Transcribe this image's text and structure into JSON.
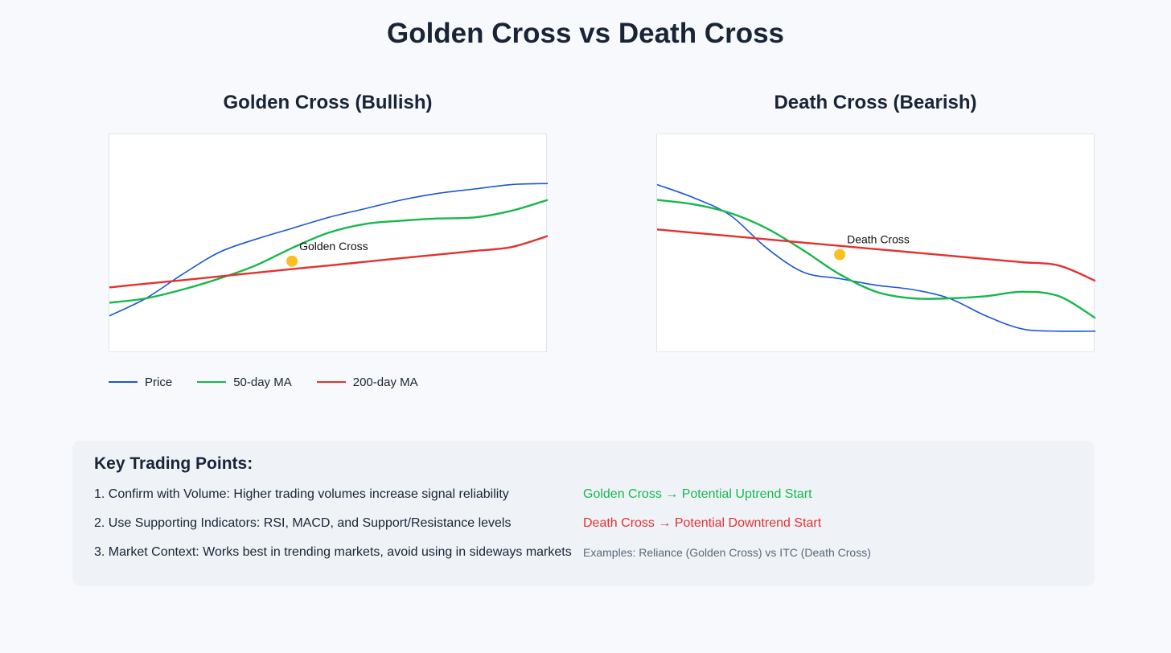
{
  "title": "Golden Cross vs Death Cross",
  "chart_data": [
    {
      "type": "line",
      "title": "Golden Cross (Bullish)",
      "x": [
        0,
        1,
        2,
        3,
        4,
        5,
        6,
        7,
        8,
        9,
        10,
        11,
        12
      ],
      "ylim": [
        0,
        100
      ],
      "series": [
        {
          "name": "Price",
          "color": "#1a56db",
          "values": [
            17,
            25,
            36,
            46,
            52,
            57,
            62,
            66,
            70,
            73,
            75,
            77,
            77.5
          ]
        },
        {
          "name": "50-day MA",
          "color": "#16b84a",
          "values": [
            23,
            25,
            29,
            34,
            40,
            48,
            55,
            59,
            60.5,
            61.5,
            62,
            65,
            70
          ]
        },
        {
          "name": "200-day MA",
          "color": "#e53030",
          "values": [
            30,
            31.7,
            33.3,
            35,
            36.7,
            38.4,
            40,
            41.7,
            43.4,
            45,
            46.7,
            48.4,
            53.5
          ]
        }
      ],
      "annotation": {
        "label": "Golden Cross",
        "x": 5,
        "y": 42,
        "color": "#fbbf24"
      }
    },
    {
      "type": "line",
      "title": "Death Cross (Bearish)",
      "x": [
        0,
        1,
        2,
        3,
        4,
        5,
        6,
        7,
        8,
        9,
        10,
        11,
        12
      ],
      "ylim": [
        0,
        100
      ],
      "series": [
        {
          "name": "Price",
          "color": "#1a56db",
          "values": [
            77,
            71,
            63,
            48,
            37,
            34,
            31,
            29,
            25,
            17,
            11,
            10,
            10
          ]
        },
        {
          "name": "50-day MA",
          "color": "#16b84a",
          "values": [
            70,
            68,
            64,
            57,
            47,
            36,
            28,
            25,
            25,
            26,
            28,
            26,
            16
          ]
        },
        {
          "name": "200-day MA",
          "color": "#e53030",
          "values": [
            56.5,
            55,
            53.5,
            52,
            50.5,
            49,
            47.5,
            46,
            44.5,
            43,
            41.5,
            40,
            33
          ]
        }
      ],
      "annotation": {
        "label": "Death Cross",
        "x": 5,
        "y": 45,
        "color": "#fbbf24"
      }
    }
  ],
  "legend": [
    {
      "label": "Price",
      "color": "#1a56db"
    },
    {
      "label": "50-day MA",
      "color": "#16b84a"
    },
    {
      "label": "200-day MA",
      "color": "#e53030"
    }
  ],
  "key_points": {
    "title": "Key Trading Points:",
    "items": [
      "1. Confirm with Volume: Higher trading volumes increase signal reliability",
      "2. Use Supporting Indicators: RSI, MACD, and Support/Resistance levels",
      "3. Market Context: Works best in trending markets, avoid using in sideways markets"
    ],
    "golden_note": "Golden Cross → Potential Uptrend Start",
    "golden_color": "#16b84a",
    "death_note": "Death Cross → Potential Downtrend Start",
    "death_color": "#e53030",
    "examples": "Examples: Reliance (Golden Cross) vs ITC (Death Cross)"
  }
}
